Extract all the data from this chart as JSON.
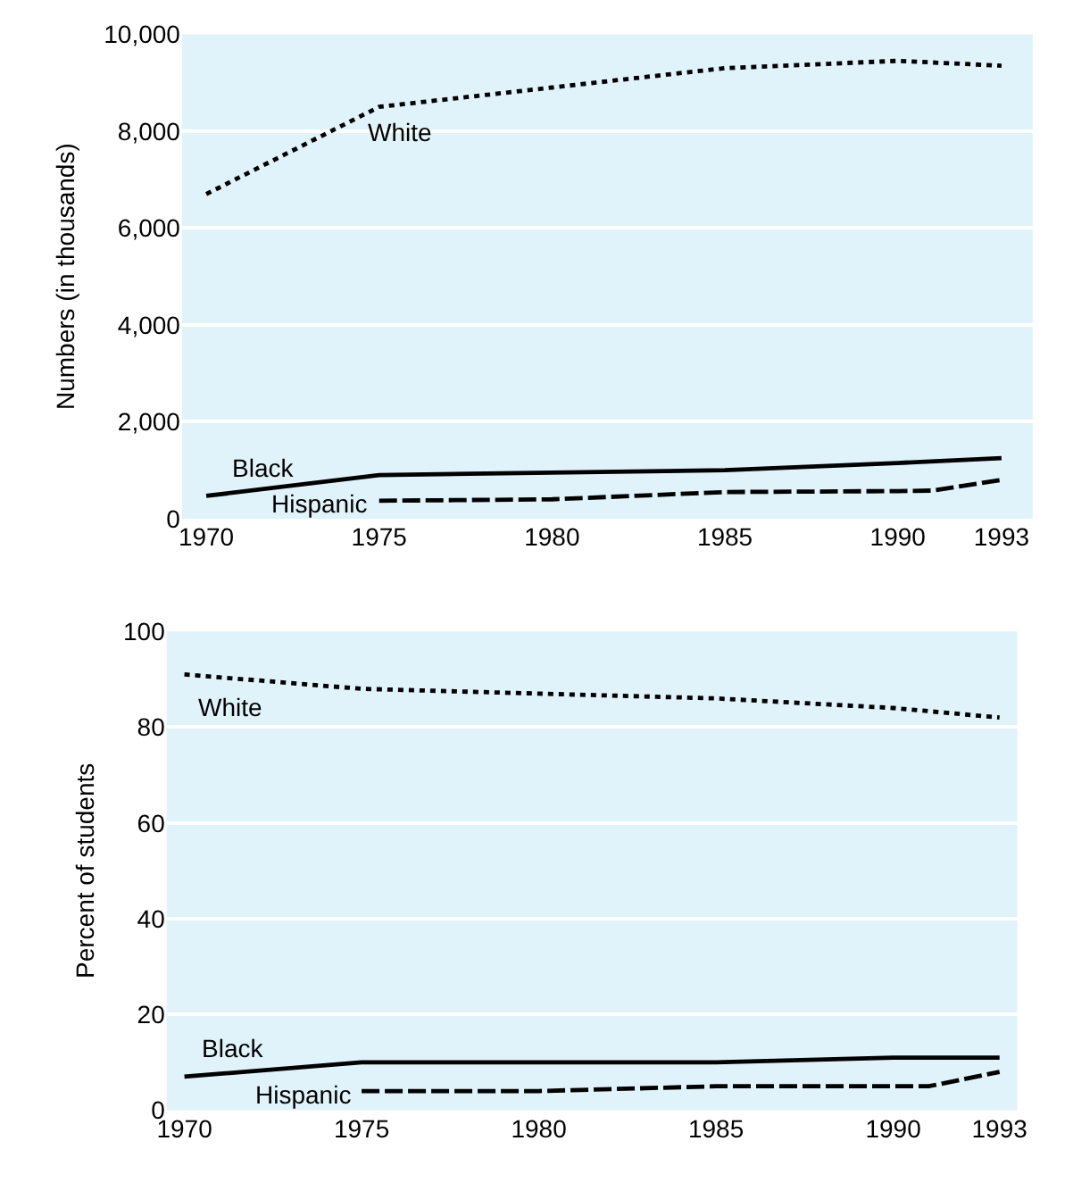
{
  "chart_data": [
    {
      "type": "line",
      "ylabel": "Numbers (in thousands)",
      "xlim": [
        1969.3,
        1993.9
      ],
      "xticks": [
        1970,
        1975,
        1980,
        1985,
        1990,
        1993
      ],
      "ylim": [
        0,
        10000
      ],
      "yticks": [
        0,
        {
          "value": 2000,
          "label": "2,000"
        },
        {
          "value": 4000,
          "label": "4,000"
        },
        {
          "value": 6000,
          "label": "6,000"
        },
        {
          "value": 8000,
          "label": "8,000"
        },
        {
          "value": 10000,
          "label": "10,000"
        }
      ],
      "grid": "y",
      "marker": "none",
      "series": [
        {
          "name": "White",
          "color": "#000000",
          "line_style": "dotted",
          "x": [
            1970,
            1975,
            1980,
            1985,
            1990,
            1993
          ],
          "values": [
            6700,
            8500,
            8900,
            9300,
            9450,
            9350
          ]
        },
        {
          "name": "Black",
          "color": "#000000",
          "line_style": "solid",
          "x": [
            1970,
            1975,
            1985,
            1990,
            1993
          ],
          "values": [
            470,
            900,
            1000,
            1150,
            1250
          ]
        },
        {
          "name": "Hispanic",
          "color": "#000000",
          "line_style": "dashed",
          "x": [
            1975,
            1980,
            1985,
            1990,
            1991,
            1993
          ],
          "values": [
            370,
            400,
            550,
            570,
            580,
            800
          ]
        }
      ]
    },
    {
      "type": "line",
      "ylabel": "Percent of students",
      "xlim": [
        1969.5,
        1993.5
      ],
      "xticks": [
        1970,
        1975,
        1980,
        1985,
        1990,
        1993
      ],
      "ylim": [
        0,
        100
      ],
      "yticks": [
        0,
        20,
        40,
        60,
        80,
        100
      ],
      "grid": "y",
      "marker": "none",
      "series": [
        {
          "name": "White",
          "color": "#000000",
          "line_style": "dotted",
          "x": [
            1970,
            1975,
            1980,
            1985,
            1990,
            1993
          ],
          "values": [
            91,
            88,
            87,
            86,
            84,
            82
          ]
        },
        {
          "name": "Black",
          "color": "#000000",
          "line_style": "solid",
          "x": [
            1970,
            1975,
            1985,
            1990,
            1993
          ],
          "values": [
            7,
            10,
            10,
            11,
            11
          ]
        },
        {
          "name": "Hispanic",
          "color": "#000000",
          "line_style": "dashed",
          "x": [
            1975,
            1980,
            1985,
            1990,
            1991,
            1993
          ],
          "values": [
            4,
            4,
            5,
            5,
            5,
            8
          ]
        }
      ]
    }
  ]
}
